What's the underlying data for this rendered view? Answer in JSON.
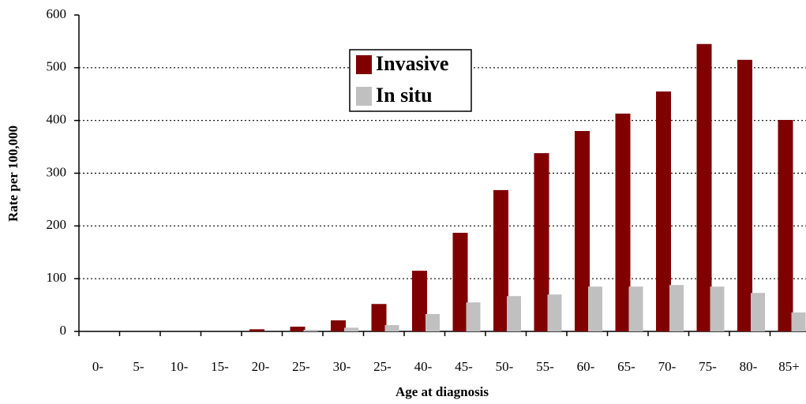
{
  "chart_data": {
    "type": "bar",
    "x_label": "Age at diagnosis",
    "y_label": "Rate per 100,000",
    "categories": [
      "0-",
      "5-",
      "10-",
      "15-",
      "20-",
      "25-",
      "30-",
      "25-",
      "40-",
      "45-",
      "50-",
      "55-",
      "60-",
      "65-",
      "70-",
      "75-",
      "80-",
      "85+"
    ],
    "series": [
      {
        "name": "Invasive",
        "color": "#800000",
        "values": [
          0,
          0,
          0,
          0,
          4,
          9,
          21,
          52,
          115,
          187,
          268,
          338,
          380,
          413,
          455,
          545,
          515,
          401
        ]
      },
      {
        "name": "In situ",
        "color": "#c0c0c0",
        "values": [
          0,
          0,
          0,
          0,
          0,
          3,
          7,
          12,
          33,
          55,
          67,
          70,
          85,
          85,
          88,
          85,
          73,
          36
        ]
      }
    ],
    "ylim": [
      0,
      600
    ],
    "yticks": [
      0,
      100,
      200,
      300,
      400,
      500,
      600
    ],
    "grid": true
  }
}
